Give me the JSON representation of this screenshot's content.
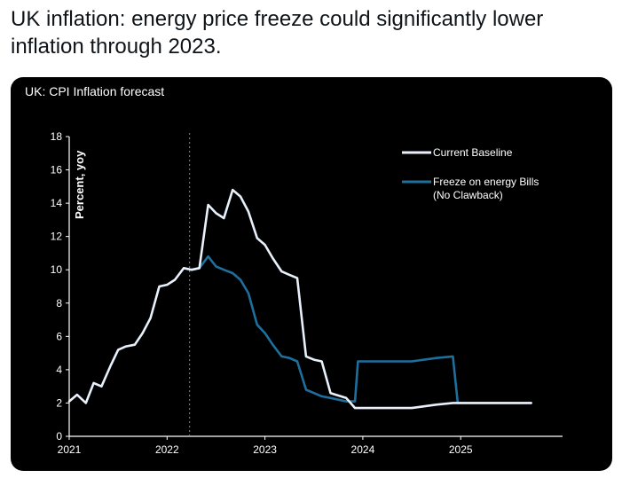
{
  "tweet": {
    "headline": "UK inflation: energy price freeze could significantly lower inflation through 2023."
  },
  "chart_data": {
    "type": "line",
    "title": "UK: CPI Inflation forecast",
    "ylabel": "Percent, yoy",
    "xlabel": "",
    "ylim": [
      0,
      18
    ],
    "xlim": [
      2021.0,
      2025.95
    ],
    "yticks": [
      0,
      2,
      4,
      6,
      8,
      10,
      12,
      14,
      16,
      18
    ],
    "xticks": [
      {
        "value": 2021,
        "label": "2021"
      },
      {
        "value": 2022,
        "label": "2022"
      },
      {
        "value": 2023,
        "label": "2023"
      },
      {
        "value": 2024,
        "label": "2024"
      },
      {
        "value": 2025,
        "label": "2025"
      }
    ],
    "vline_x": 2022.23,
    "grid": false,
    "legend_position": "top-right",
    "series": [
      {
        "name": "Current Baseline",
        "color": "#e8f1fb",
        "points": [
          [
            2021.0,
            2.1
          ],
          [
            2021.08,
            2.5
          ],
          [
            2021.17,
            2.0
          ],
          [
            2021.25,
            3.2
          ],
          [
            2021.33,
            3.0
          ],
          [
            2021.42,
            4.2
          ],
          [
            2021.5,
            5.2
          ],
          [
            2021.58,
            5.4
          ],
          [
            2021.67,
            5.5
          ],
          [
            2021.75,
            6.2
          ],
          [
            2021.83,
            7.1
          ],
          [
            2021.92,
            9.0
          ],
          [
            2022.0,
            9.1
          ],
          [
            2022.08,
            9.4
          ],
          [
            2022.17,
            10.1
          ],
          [
            2022.25,
            10.0
          ],
          [
            2022.33,
            10.1
          ],
          [
            2022.42,
            13.9
          ],
          [
            2022.5,
            13.4
          ],
          [
            2022.58,
            13.1
          ],
          [
            2022.67,
            14.8
          ],
          [
            2022.75,
            14.4
          ],
          [
            2022.83,
            13.5
          ],
          [
            2022.92,
            11.9
          ],
          [
            2023.0,
            11.5
          ],
          [
            2023.08,
            10.7
          ],
          [
            2023.17,
            9.9
          ],
          [
            2023.25,
            9.7
          ],
          [
            2023.33,
            9.5
          ],
          [
            2023.42,
            4.8
          ],
          [
            2023.5,
            4.6
          ],
          [
            2023.58,
            4.5
          ],
          [
            2023.67,
            2.6
          ],
          [
            2023.83,
            2.3
          ],
          [
            2023.92,
            1.7
          ],
          [
            2024.0,
            1.7
          ],
          [
            2024.25,
            1.7
          ],
          [
            2024.5,
            1.7
          ],
          [
            2024.75,
            1.9
          ],
          [
            2024.92,
            2.0
          ],
          [
            2025.0,
            2.0
          ],
          [
            2025.25,
            2.0
          ],
          [
            2025.5,
            2.0
          ],
          [
            2025.72,
            2.0
          ]
        ]
      },
      {
        "name": "Freeze on energy Bills (No Clawback)",
        "legend_lines": [
          "Freeze on energy Bills",
          "(No Clawback)"
        ],
        "color": "#1f6f9e",
        "points": [
          [
            2022.25,
            10.0
          ],
          [
            2022.33,
            10.1
          ],
          [
            2022.42,
            10.8
          ],
          [
            2022.5,
            10.2
          ],
          [
            2022.58,
            10.0
          ],
          [
            2022.67,
            9.8
          ],
          [
            2022.75,
            9.4
          ],
          [
            2022.83,
            8.6
          ],
          [
            2022.92,
            6.7
          ],
          [
            2023.0,
            6.2
          ],
          [
            2023.08,
            5.5
          ],
          [
            2023.17,
            4.8
          ],
          [
            2023.25,
            4.7
          ],
          [
            2023.33,
            4.5
          ],
          [
            2023.42,
            2.8
          ],
          [
            2023.5,
            2.6
          ],
          [
            2023.58,
            2.4
          ],
          [
            2023.67,
            2.3
          ],
          [
            2023.83,
            2.1
          ],
          [
            2023.92,
            2.1
          ],
          [
            2023.95,
            4.5
          ],
          [
            2024.0,
            4.5
          ],
          [
            2024.25,
            4.5
          ],
          [
            2024.5,
            4.5
          ],
          [
            2024.75,
            4.7
          ],
          [
            2024.92,
            4.8
          ],
          [
            2024.97,
            2.0
          ],
          [
            2025.0,
            2.0
          ],
          [
            2025.25,
            2.0
          ],
          [
            2025.5,
            2.0
          ],
          [
            2025.72,
            2.0
          ]
        ]
      }
    ]
  }
}
